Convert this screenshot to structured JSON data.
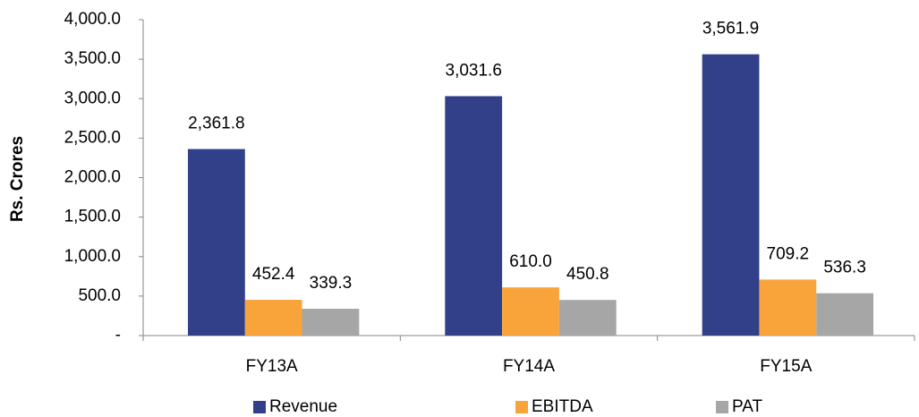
{
  "chart_data": {
    "type": "bar",
    "y_label": "Rs. Crores",
    "categories": [
      "FY13A",
      "FY14A",
      "FY15A"
    ],
    "series": [
      {
        "name": "Revenue",
        "color": "#323f89",
        "values": [
          2361.8,
          3031.6,
          3561.9
        ],
        "value_labels": [
          "2,361.8",
          "3,031.6",
          "3,561.9"
        ]
      },
      {
        "name": "EBITDA",
        "color": "#f9a43b",
        "values": [
          452.4,
          610.0,
          709.2
        ],
        "value_labels": [
          "452.4",
          "610.0",
          "709.2"
        ]
      },
      {
        "name": "PAT",
        "color": "#a6a6a6",
        "values": [
          339.3,
          450.8,
          536.3
        ],
        "value_labels": [
          "339.3",
          "450.8",
          "536.3"
        ]
      }
    ],
    "ylim": [
      0,
      4000
    ],
    "yticks": [
      {
        "value": 0,
        "label": "-"
      },
      {
        "value": 500,
        "label": "500.0"
      },
      {
        "value": 1000,
        "label": "1,000.0"
      },
      {
        "value": 1500,
        "label": "1,500.0"
      },
      {
        "value": 2000,
        "label": "2,000.0"
      },
      {
        "value": 2500,
        "label": "2,500.0"
      },
      {
        "value": 3000,
        "label": "3,000.0"
      },
      {
        "value": 3500,
        "label": "3,500.0"
      },
      {
        "value": 4000,
        "label": "4,000.0"
      }
    ],
    "grid": false,
    "legend": "bottom"
  }
}
